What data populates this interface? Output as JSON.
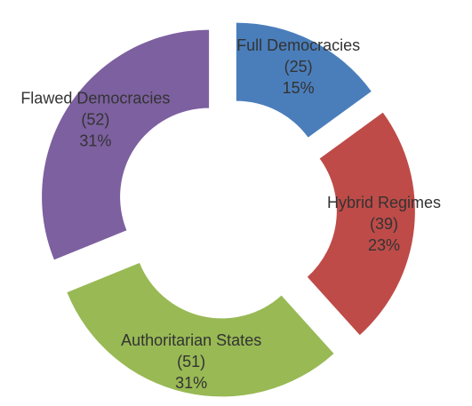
{
  "chart_data": {
    "type": "donut",
    "categories": [
      "Full Democracies",
      "Hybrid Regimes",
      "Authoritarian States",
      "Flawed Democracies"
    ],
    "values": [
      25,
      39,
      51,
      52
    ],
    "value_labels": [
      "(25)",
      "(39)",
      "(51)",
      "(52)"
    ],
    "share_labels": [
      "15%",
      "23%",
      "31%",
      "31%"
    ],
    "colors": [
      "#4a7ebb",
      "#be4b48",
      "#98b954",
      "#7d60a0"
    ]
  }
}
